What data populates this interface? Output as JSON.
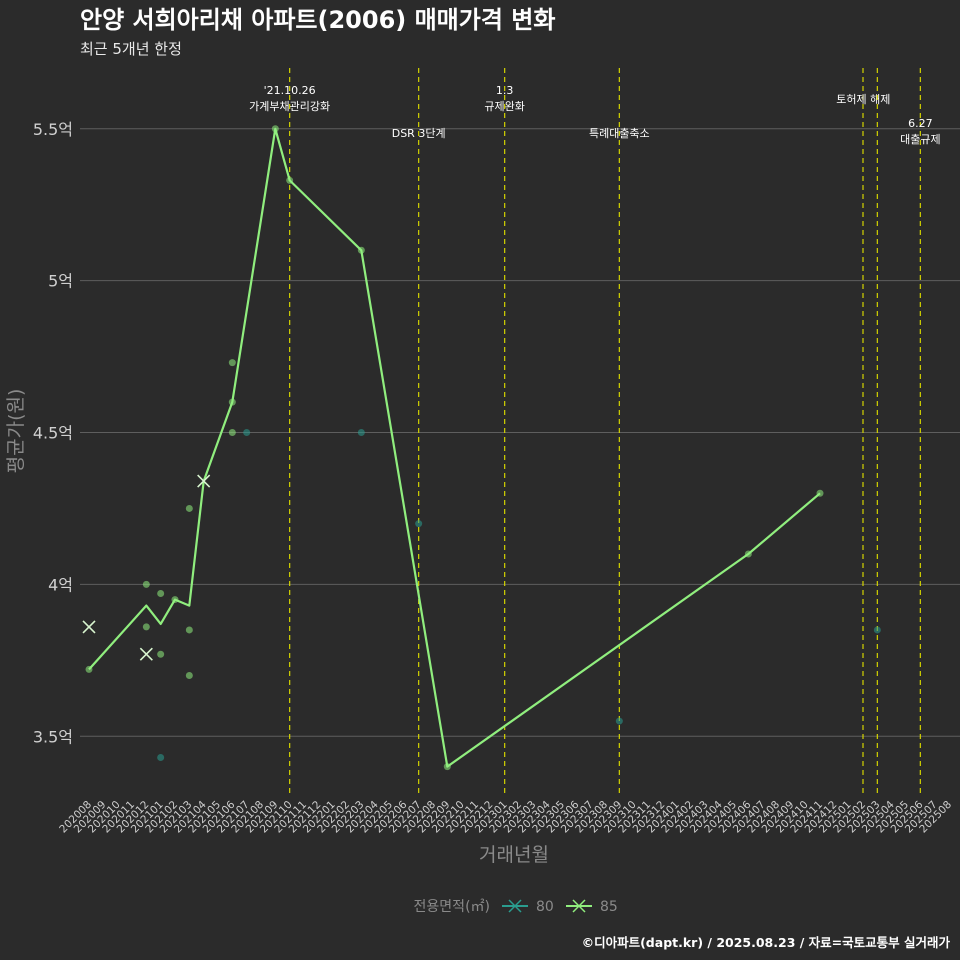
{
  "chart_data": {
    "type": "line",
    "title": "안양 서희아리채 아파트(2006) 매매가격 변화",
    "subtitle": "최근 5개년 한정",
    "xlabel": "거래년월",
    "ylabel": "평균가(원)",
    "ylim": [
      3.3,
      5.7
    ],
    "grid": true,
    "x_categories": [
      "202008",
      "202009",
      "202010",
      "202011",
      "202012",
      "202101",
      "202102",
      "202103",
      "202104",
      "202105",
      "202106",
      "202107",
      "202108",
      "202109",
      "202110",
      "202111",
      "202112",
      "202201",
      "202202",
      "202203",
      "202204",
      "202205",
      "202206",
      "202207",
      "202208",
      "202209",
      "202210",
      "202211",
      "202212",
      "202301",
      "202302",
      "202303",
      "202304",
      "202305",
      "202306",
      "202307",
      "202308",
      "202309",
      "202310",
      "202311",
      "202312",
      "202401",
      "202402",
      "202403",
      "202404",
      "202405",
      "202406",
      "202407",
      "202408",
      "202409",
      "202410",
      "202411",
      "202412",
      "202501",
      "202502",
      "202503",
      "202504",
      "202505",
      "202506",
      "202507",
      "202508"
    ],
    "y_ticks": [
      {
        "value": 3.5,
        "label": "3.5억"
      },
      {
        "value": 4.0,
        "label": "4억"
      },
      {
        "value": 4.5,
        "label": "4.5억"
      },
      {
        "value": 5.0,
        "label": "5억"
      },
      {
        "value": 5.5,
        "label": "5.5억"
      }
    ],
    "events": [
      {
        "x": 14.0,
        "lines": [
          "'21.10.26",
          "가계부채관리강화"
        ],
        "row": "top"
      },
      {
        "x": 23.0,
        "lines": [
          "DSR 3단계"
        ],
        "row": "mid"
      },
      {
        "x": 29.0,
        "lines": [
          "1.3",
          "규제완화"
        ],
        "row": "top"
      },
      {
        "x": 37.0,
        "lines": [
          "특례대출축소"
        ],
        "row": "mid"
      },
      {
        "x": 54.0,
        "lines": [
          "토허제 해제"
        ],
        "row": "top2",
        "label_x": 55.0
      },
      {
        "x": 55.0,
        "lines": [],
        "row": "none"
      },
      {
        "x": 58.0,
        "lines": [
          "6.27",
          "대출규제"
        ],
        "row": "low"
      }
    ],
    "series": [
      {
        "name": "80",
        "color": "#2a9d8f",
        "line": [],
        "averages": [],
        "points": [
          [
            5,
            3.43
          ],
          [
            11,
            4.5
          ],
          [
            19,
            4.5
          ],
          [
            23,
            4.2
          ],
          [
            37,
            3.55
          ],
          [
            55,
            3.85
          ]
        ]
      },
      {
        "name": "85",
        "color": "#90ee7e",
        "line": [
          [
            0,
            3.72
          ],
          [
            4,
            3.93
          ],
          [
            5,
            3.87
          ],
          [
            6,
            3.95
          ],
          [
            7,
            3.93
          ],
          [
            8,
            4.34
          ],
          [
            10,
            4.6
          ],
          [
            13,
            5.5
          ],
          [
            14,
            5.33
          ],
          [
            19,
            5.1
          ],
          [
            25,
            3.4
          ],
          [
            46,
            4.1
          ],
          [
            51,
            4.3
          ]
        ],
        "averages": [
          [
            0,
            3.86
          ],
          [
            4,
            3.77
          ],
          [
            8,
            4.34
          ]
        ],
        "points": [
          [
            0,
            3.72
          ],
          [
            4,
            4.0
          ],
          [
            4,
            3.86
          ],
          [
            5,
            3.97
          ],
          [
            5,
            3.77
          ],
          [
            6,
            3.95
          ],
          [
            7,
            4.25
          ],
          [
            7,
            3.85
          ],
          [
            7,
            3.7
          ],
          [
            10,
            4.73
          ],
          [
            10,
            4.6
          ],
          [
            10,
            4.5
          ],
          [
            13,
            5.5
          ],
          [
            14,
            5.33
          ],
          [
            19,
            5.1
          ],
          [
            25,
            3.4
          ],
          [
            46,
            4.1
          ],
          [
            51,
            4.3
          ]
        ]
      }
    ],
    "legend": {
      "title": "전용면적(㎡)",
      "position": "bottom"
    },
    "credit": "©디아파트(dapt.kr) / 2025.08.23 / 자료=국토교통부 실거래가"
  },
  "colors": {
    "background": "#2b2b2b",
    "grid": "#5e5e5e",
    "event_line": "#d4d400"
  }
}
